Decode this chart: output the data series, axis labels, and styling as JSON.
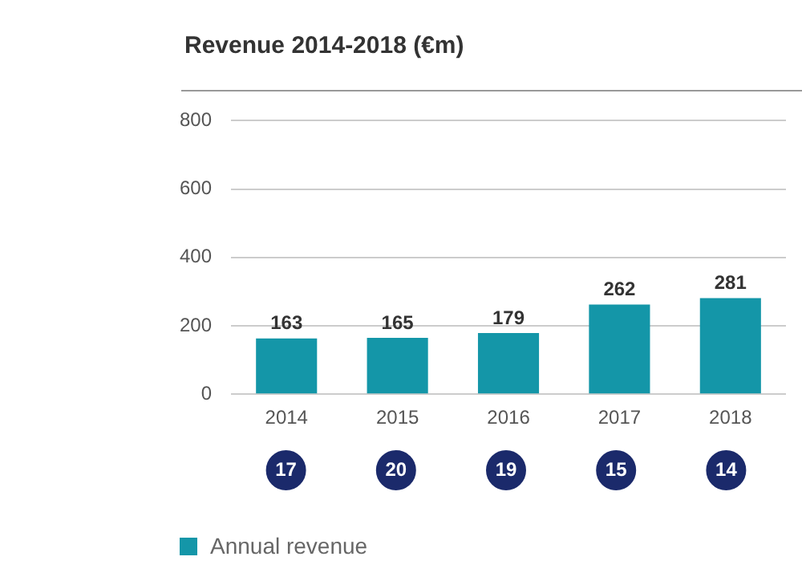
{
  "chart_data": [
    {
      "type": "bar",
      "title": "Revenue 2014-2018 (€m)",
      "categories": [
        "2014",
        "2015",
        "2016",
        "2017",
        "2018"
      ],
      "series": [
        {
          "name": "Annual revenue",
          "color": "#1496a8",
          "values": [
            163,
            165,
            179,
            262,
            281
          ]
        }
      ],
      "ylim": [
        0,
        800
      ],
      "yticks": [
        0,
        200,
        400,
        600,
        800
      ],
      "grid": "y",
      "data_labels": true,
      "legend": "bottom"
    },
    {
      "type": "other",
      "series": [
        {
          "color": "#1b2a6b",
          "values": [
            17,
            20,
            19,
            15,
            14
          ]
        }
      ],
      "data_labels": true
    }
  ]
}
